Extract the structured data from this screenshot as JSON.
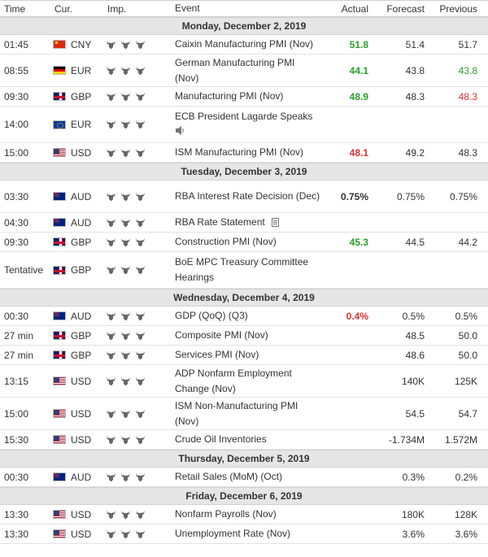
{
  "headers": {
    "time": "Time",
    "currency": "Cur.",
    "importance": "Imp.",
    "event": "Event",
    "actual": "Actual",
    "forecast": "Forecast",
    "previous": "Previous"
  },
  "days": [
    {
      "label": "Monday, December 2, 2019",
      "rows": [
        {
          "time": "01:45",
          "cur": "CNY",
          "flag": "cny",
          "event": "Caixin Manufacturing PMI (Nov)",
          "actual": "51.8",
          "actual_color": "green",
          "forecast": "51.4",
          "previous": "51.7",
          "previous_color": "black",
          "height": "h24"
        },
        {
          "time": "08:55",
          "cur": "EUR",
          "flag": "ger",
          "event": "German Manufacturing PMI (Nov)",
          "actual": "44.1",
          "actual_color": "green",
          "forecast": "43.8",
          "previous": "43.8",
          "previous_color": "green",
          "height": "h40"
        },
        {
          "time": "09:30",
          "cur": "GBP",
          "flag": "gbp",
          "event": "Manufacturing PMI (Nov)",
          "actual": "48.9",
          "actual_color": "green",
          "forecast": "48.3",
          "previous": "48.3",
          "previous_color": "red",
          "height": "h24"
        },
        {
          "time": "14:00",
          "cur": "EUR",
          "flag": "eur",
          "event": "ECB President Lagarde Speaks",
          "event_icon": "speaker-icon",
          "actual": "",
          "actual_color": "black",
          "forecast": "",
          "previous": "",
          "previous_color": "black",
          "height": "h45"
        },
        {
          "time": "15:00",
          "cur": "USD",
          "flag": "usd",
          "event": "ISM Manufacturing PMI (Nov)",
          "actual": "48.1",
          "actual_color": "red",
          "forecast": "49.2",
          "previous": "48.3",
          "previous_color": "black",
          "height": "h24"
        }
      ]
    },
    {
      "label": "Tuesday, December 3, 2019",
      "rows": [
        {
          "time": "03:30",
          "cur": "AUD",
          "flag": "aud",
          "event": "RBA Interest Rate Decision (Dec)",
          "actual": "0.75%",
          "actual_color": "black",
          "forecast": "0.75%",
          "previous": "0.75%",
          "previous_color": "black",
          "height": "h40"
        },
        {
          "time": "04:30",
          "cur": "AUD",
          "flag": "aud",
          "event": "RBA Rate Statement",
          "event_icon": "document-icon",
          "actual": "",
          "actual_color": "black",
          "forecast": "",
          "previous": "",
          "previous_color": "black",
          "height": "h24"
        },
        {
          "time": "09:30",
          "cur": "GBP",
          "flag": "gbp",
          "event": "Construction PMI (Nov)",
          "actual": "45.3",
          "actual_color": "green",
          "forecast": "44.5",
          "previous": "44.2",
          "previous_color": "black",
          "height": "h24"
        },
        {
          "time": "Tentative",
          "cur": "GBP",
          "flag": "gbp",
          "event": "BoE MPC Treasury Committee Hearings",
          "actual": "",
          "actual_color": "black",
          "forecast": "",
          "previous": "",
          "previous_color": "black",
          "height": "h45"
        }
      ]
    },
    {
      "label": "Wednesday, December 4, 2019",
      "rows": [
        {
          "time": "00:30",
          "cur": "AUD",
          "flag": "aud",
          "event": "GDP (QoQ) (Q3)",
          "actual": "0.4%",
          "actual_color": "red",
          "forecast": "0.5%",
          "previous": "0.5%",
          "previous_color": "black",
          "height": "h24"
        },
        {
          "time": "27 min",
          "cur": "GBP",
          "flag": "gbp",
          "event": "Composite PMI (Nov)",
          "actual": "",
          "actual_color": "black",
          "forecast": "48.5",
          "previous": "50.0",
          "previous_color": "black",
          "height": "h24"
        },
        {
          "time": "27 min",
          "cur": "GBP",
          "flag": "gbp",
          "event": "Services PMI (Nov)",
          "actual": "",
          "actual_color": "black",
          "forecast": "48.6",
          "previous": "50.0",
          "previous_color": "black",
          "height": "h24"
        },
        {
          "time": "13:15",
          "cur": "USD",
          "flag": "usd",
          "event": "ADP Nonfarm Employment Change (Nov)",
          "actual": "",
          "actual_color": "black",
          "forecast": "140K",
          "previous": "125K",
          "previous_color": "black",
          "height": "h40"
        },
        {
          "time": "15:00",
          "cur": "USD",
          "flag": "usd",
          "event": "ISM Non-Manufacturing PMI (Nov)",
          "actual": "",
          "actual_color": "black",
          "forecast": "54.5",
          "previous": "54.7",
          "previous_color": "black",
          "height": "h40"
        },
        {
          "time": "15:30",
          "cur": "USD",
          "flag": "usd",
          "event": "Crude Oil Inventories",
          "actual": "",
          "actual_color": "black",
          "forecast": "-1.734M",
          "previous": "1.572M",
          "previous_color": "black",
          "height": "h24"
        }
      ]
    },
    {
      "label": "Thursday, December 5, 2019",
      "rows": [
        {
          "time": "00:30",
          "cur": "AUD",
          "flag": "aud",
          "event": "Retail Sales (MoM) (Oct)",
          "actual": "",
          "actual_color": "black",
          "forecast": "0.3%",
          "previous": "0.2%",
          "previous_color": "black",
          "height": "h24"
        }
      ]
    },
    {
      "label": "Friday, December 6, 2019",
      "rows": [
        {
          "time": "13:30",
          "cur": "USD",
          "flag": "usd",
          "event": "Nonfarm Payrolls (Nov)",
          "actual": "",
          "actual_color": "black",
          "forecast": "180K",
          "previous": "128K",
          "previous_color": "black",
          "height": "h24"
        },
        {
          "time": "13:30",
          "cur": "USD",
          "flag": "usd",
          "event": "Unemployment Rate (Nov)",
          "actual": "",
          "actual_color": "black",
          "forecast": "3.6%",
          "previous": "3.6%",
          "previous_color": "black",
          "height": "h24"
        }
      ]
    }
  ],
  "icons": {
    "importance": "bull-icon",
    "importance_count": 3,
    "importance_color": "#666666"
  }
}
